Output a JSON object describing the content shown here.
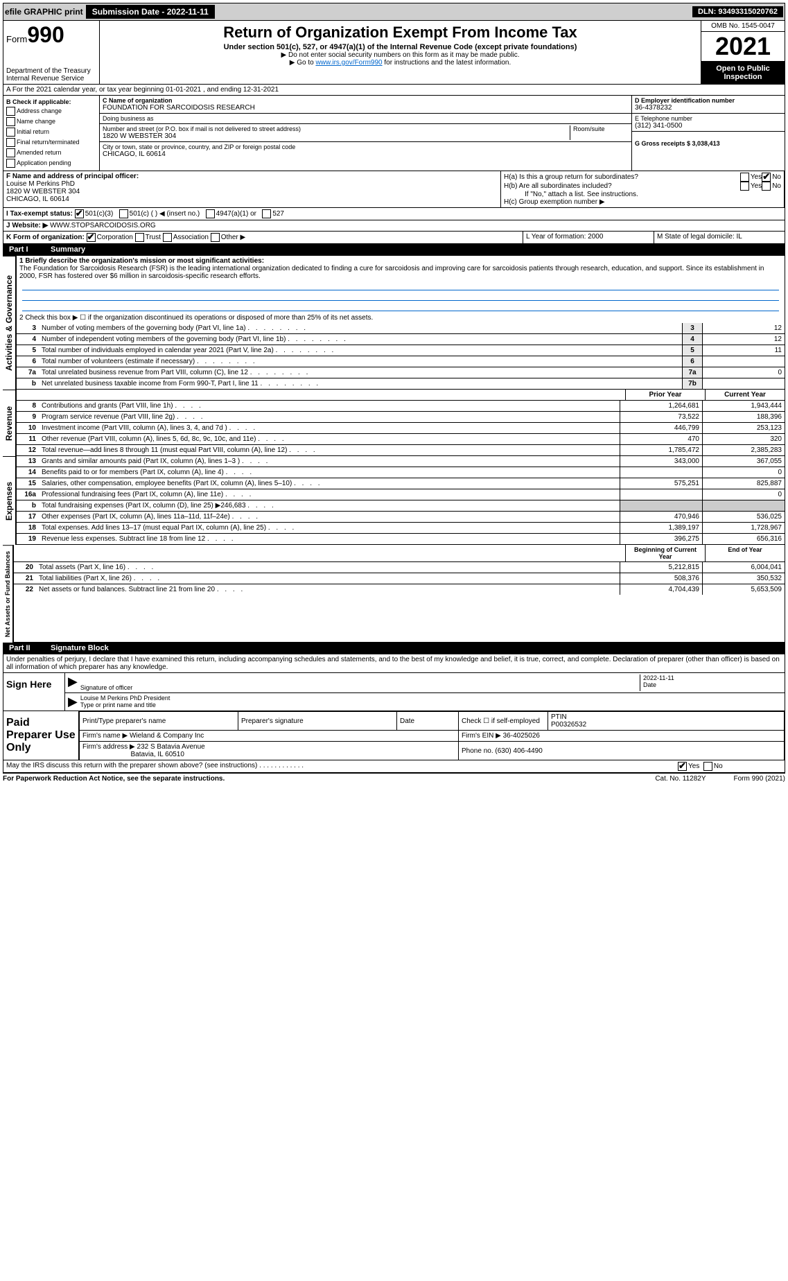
{
  "topbar": {
    "efile": "efile GRAPHIC print",
    "submission_label": "Submission Date - 2022-11-11",
    "dln": "DLN: 93493315020762"
  },
  "header": {
    "form_prefix": "Form",
    "form_number": "990",
    "dept": "Department of the Treasury",
    "irs": "Internal Revenue Service",
    "title": "Return of Organization Exempt From Income Tax",
    "subtitle": "Under section 501(c), 527, or 4947(a)(1) of the Internal Revenue Code (except private foundations)",
    "note1": "▶ Do not enter social security numbers on this form as it may be made public.",
    "note2_pre": "▶ Go to ",
    "note2_link": "www.irs.gov/Form990",
    "note2_post": " for instructions and the latest information.",
    "omb": "OMB No. 1545-0047",
    "year": "2021",
    "inspection": "Open to Public Inspection"
  },
  "row_a": "A For the 2021 calendar year, or tax year beginning 01-01-2021    , and ending 12-31-2021",
  "col_b": {
    "label": "B Check if applicable:",
    "addr": "Address change",
    "name": "Name change",
    "init": "Initial return",
    "final": "Final return/terminated",
    "amend": "Amended return",
    "app": "Application pending"
  },
  "col_c": {
    "name_label": "C Name of organization",
    "name": "FOUNDATION FOR SARCOIDOSIS RESEARCH",
    "dba_label": "Doing business as",
    "addr_label": "Number and street (or P.O. box if mail is not delivered to street address)",
    "room_label": "Room/suite",
    "addr": "1820 W WEBSTER 304",
    "city_label": "City or town, state or province, country, and ZIP or foreign postal code",
    "city": "CHICAGO, IL  60614"
  },
  "col_d": {
    "d_label": "D Employer identification number",
    "d_val": "36-4378232",
    "e_label": "E Telephone number",
    "e_val": "(312) 341-0500",
    "g_label": "G Gross receipts $ 3,038,413"
  },
  "row_f": {
    "f_label": "F Name and address of principal officer:",
    "name": "Louise M Perkins PhD",
    "addr": "1820 W WEBSTER 304",
    "city": "CHICAGO, IL  60614"
  },
  "row_h": {
    "ha": "H(a)  Is this a group return for subordinates?",
    "hb": "H(b)  Are all subordinates included?",
    "hb_note": "If \"No,\" attach a list. See instructions.",
    "hc": "H(c)  Group exemption number ▶",
    "yes": "Yes",
    "no": "No"
  },
  "row_i": {
    "label": "I  Tax-exempt status:",
    "o1": "501(c)(3)",
    "o2": "501(c) (   ) ◀ (insert no.)",
    "o3": "4947(a)(1) or",
    "o4": "527"
  },
  "row_j": {
    "label": "J  Website: ▶",
    "val": "WWW.STOPSARCOIDOSIS.ORG"
  },
  "row_k": {
    "label": "K Form of organization:",
    "corp": "Corporation",
    "trust": "Trust",
    "assoc": "Association",
    "other": "Other ▶"
  },
  "row_l": {
    "l": "L Year of formation: 2000",
    "m": "M State of legal domicile: IL"
  },
  "part1": {
    "label": "Part I",
    "title": "Summary"
  },
  "summary": {
    "line1_label": "1  Briefly describe the organization's mission or most significant activities:",
    "line1_text": "The Foundation for Sarcoidosis Research (FSR) is the leading international organization dedicated to finding a cure for sarcoidosis and improving care for sarcoidosis patients through research, education, and support. Since its establishment in 2000, FSR has fostered over $6 million in sarcoidosis-specific research efforts.",
    "line2": "2   Check this box ▶ ☐  if the organization discontinued its operations or disposed of more than 25% of its net assets.",
    "lines": [
      {
        "n": "3",
        "d": "Number of voting members of the governing body (Part VI, line 1a)",
        "b": "3",
        "v": "12"
      },
      {
        "n": "4",
        "d": "Number of independent voting members of the governing body (Part VI, line 1b)",
        "b": "4",
        "v": "12"
      },
      {
        "n": "5",
        "d": "Total number of individuals employed in calendar year 2021 (Part V, line 2a)",
        "b": "5",
        "v": "11"
      },
      {
        "n": "6",
        "d": "Total number of volunteers (estimate if necessary)",
        "b": "6",
        "v": ""
      },
      {
        "n": "7a",
        "d": "Total unrelated business revenue from Part VIII, column (C), line 12",
        "b": "7a",
        "v": "0"
      },
      {
        "n": "b",
        "d": "Net unrelated business taxable income from Form 990-T, Part I, line 11",
        "b": "7b",
        "v": ""
      }
    ],
    "prior": "Prior Year",
    "current": "Current Year",
    "revenue": [
      {
        "n": "8",
        "d": "Contributions and grants (Part VIII, line 1h)",
        "p": "1,264,681",
        "c": "1,943,444"
      },
      {
        "n": "9",
        "d": "Program service revenue (Part VIII, line 2g)",
        "p": "73,522",
        "c": "188,396"
      },
      {
        "n": "10",
        "d": "Investment income (Part VIII, column (A), lines 3, 4, and 7d )",
        "p": "446,799",
        "c": "253,123"
      },
      {
        "n": "11",
        "d": "Other revenue (Part VIII, column (A), lines 5, 6d, 8c, 9c, 10c, and 11e)",
        "p": "470",
        "c": "320"
      },
      {
        "n": "12",
        "d": "Total revenue—add lines 8 through 11 (must equal Part VIII, column (A), line 12)",
        "p": "1,785,472",
        "c": "2,385,283"
      }
    ],
    "expenses": [
      {
        "n": "13",
        "d": "Grants and similar amounts paid (Part IX, column (A), lines 1–3 )",
        "p": "343,000",
        "c": "367,055"
      },
      {
        "n": "14",
        "d": "Benefits paid to or for members (Part IX, column (A), line 4)",
        "p": "",
        "c": "0"
      },
      {
        "n": "15",
        "d": "Salaries, other compensation, employee benefits (Part IX, column (A), lines 5–10)",
        "p": "575,251",
        "c": "825,887"
      },
      {
        "n": "16a",
        "d": "Professional fundraising fees (Part IX, column (A), line 11e)",
        "p": "",
        "c": "0"
      },
      {
        "n": "b",
        "d": "Total fundraising expenses (Part IX, column (D), line 25) ▶246,683",
        "p": "grey",
        "c": "grey"
      },
      {
        "n": "17",
        "d": "Other expenses (Part IX, column (A), lines 11a–11d, 11f–24e)",
        "p": "470,946",
        "c": "536,025"
      },
      {
        "n": "18",
        "d": "Total expenses. Add lines 13–17 (must equal Part IX, column (A), line 25)",
        "p": "1,389,197",
        "c": "1,728,967"
      },
      {
        "n": "19",
        "d": "Revenue less expenses. Subtract line 18 from line 12",
        "p": "396,275",
        "c": "656,316"
      }
    ],
    "begin": "Beginning of Current Year",
    "end": "End of Year",
    "netassets": [
      {
        "n": "20",
        "d": "Total assets (Part X, line 16)",
        "p": "5,212,815",
        "c": "6,004,041"
      },
      {
        "n": "21",
        "d": "Total liabilities (Part X, line 26)",
        "p": "508,376",
        "c": "350,532"
      },
      {
        "n": "22",
        "d": "Net assets or fund balances. Subtract line 21 from line 20",
        "p": "4,704,439",
        "c": "5,653,509"
      }
    ]
  },
  "vtabs": {
    "gov": "Activities & Governance",
    "rev": "Revenue",
    "exp": "Expenses",
    "net": "Net Assets or Fund Balances"
  },
  "part2": {
    "label": "Part II",
    "title": "Signature Block"
  },
  "sig": {
    "penalty": "Under penalties of perjury, I declare that I have examined this return, including accompanying schedules and statements, and to the best of my knowledge and belief, it is true, correct, and complete. Declaration of preparer (other than officer) is based on all information of which preparer has any knowledge.",
    "sign_here": "Sign Here",
    "sig_officer": "Signature of officer",
    "date": "Date",
    "date_val": "2022-11-11",
    "name_title": "Louise M Perkins PhD  President",
    "type_label": "Type or print name and title",
    "paid": "Paid Preparer Use Only",
    "prep_name_label": "Print/Type preparer's name",
    "prep_sig_label": "Preparer's signature",
    "date_label": "Date",
    "check_label": "Check ☐ if self-employed",
    "ptin_label": "PTIN",
    "ptin": "P00326532",
    "firm_name_label": "Firm's name    ▶",
    "firm_name": "Wieland & Company Inc",
    "firm_ein_label": "Firm's EIN ▶",
    "firm_ein": "36-4025026",
    "firm_addr_label": "Firm's address ▶",
    "firm_addr": "232 S Batavia Avenue",
    "firm_city": "Batavia, IL  60510",
    "phone_label": "Phone no.",
    "phone": "(630) 406-4490",
    "discuss": "May the IRS discuss this return with the preparer shown above? (see instructions)",
    "yes": "Yes",
    "no": "No"
  },
  "footer": {
    "left": "For Paperwork Reduction Act Notice, see the separate instructions.",
    "mid": "Cat. No. 11282Y",
    "right": "Form 990 (2021)"
  }
}
